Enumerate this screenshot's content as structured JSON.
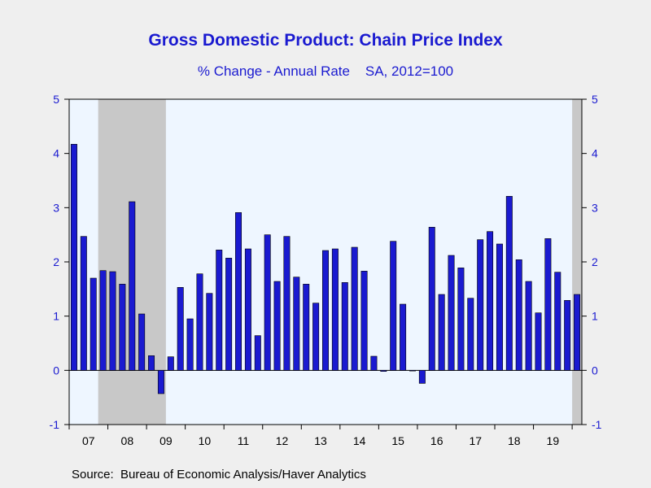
{
  "chart_data": {
    "type": "bar",
    "title": "Gross Domestic Product: Chain Price Index",
    "subtitle": "% Change - Annual Rate    SA, 2012=100",
    "source": "Source:  Bureau of Economic Analysis/Haver Analytics",
    "ylim": [
      -1,
      5
    ],
    "yticks": [
      -1,
      0,
      1,
      2,
      3,
      4,
      5
    ],
    "x_year_labels": [
      "07",
      "08",
      "09",
      "10",
      "11",
      "12",
      "13",
      "14",
      "15",
      "16",
      "17",
      "18",
      "19"
    ],
    "first_period": "2007-Q1",
    "frequency": "quarterly",
    "values": [
      4.17,
      2.47,
      1.7,
      1.84,
      1.82,
      1.59,
      3.11,
      1.04,
      0.27,
      -0.43,
      0.25,
      1.53,
      0.95,
      1.78,
      1.42,
      2.22,
      2.07,
      2.91,
      2.24,
      0.64,
      2.5,
      1.64,
      2.47,
      1.72,
      1.59,
      1.24,
      2.21,
      2.24,
      1.62,
      2.27,
      1.83,
      0.26,
      -0.02,
      2.38,
      1.22,
      -0.01,
      -0.24,
      2.64,
      1.4,
      2.12,
      1.89,
      1.33,
      2.41,
      2.56,
      2.33,
      3.21,
      2.04,
      1.64,
      1.06,
      2.43,
      1.81,
      1.29,
      1.4
    ],
    "recession_shading": [
      [
        "2007-Q4",
        "2009-Q2"
      ],
      [
        "2020-Q1",
        "2020-Q1"
      ]
    ],
    "bar_color": "#1a1ad0",
    "bar_outline": "#000000",
    "plot_background": "#eef6ff",
    "recession_color": "#c8c8c8",
    "axis_label_color": "#1a1ad0",
    "grid": false
  }
}
